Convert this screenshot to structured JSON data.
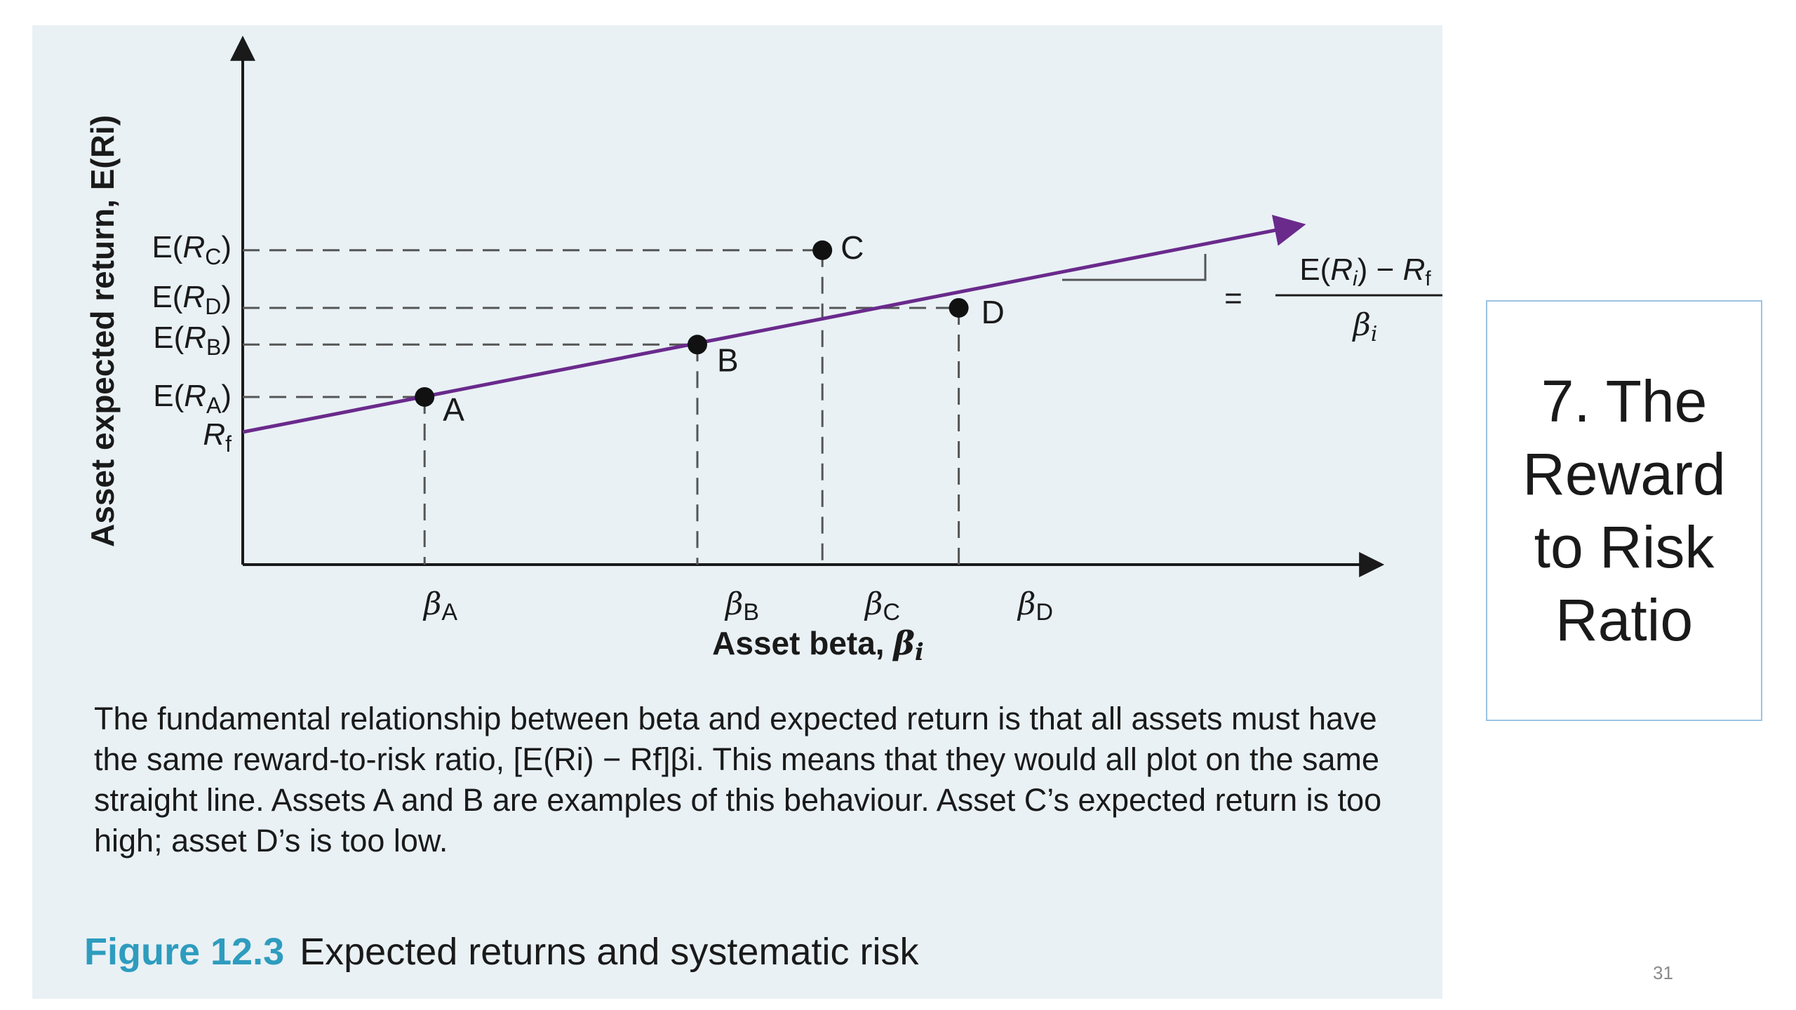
{
  "slide": {
    "title": "7. The Reward to Risk Ratio",
    "page_number": "31"
  },
  "figure": {
    "number": "Figure 12.3",
    "title": "Expected returns and systematic risk",
    "caption": "The fundamental relationship between beta and expected return is that all assets must have the same reward-to-risk ratio, [E(Ri) − Rf]βi. This means that they would all plot on the same straight line. Assets A and B are examples of this behaviour. Asset C’s expected return is too high; asset D’s is too low."
  },
  "chart_data": {
    "type": "line",
    "xlabel": "Asset beta, βi",
    "ylabel": "Asset expected return, E(Ri)",
    "x_tick_labels": [
      "βA",
      "βB",
      "βC",
      "βD"
    ],
    "y_tick_labels": [
      "E(RC)",
      "E(RD)",
      "E(RB)",
      "E(RA)",
      "Rf"
    ],
    "slope_annotation": {
      "numerator": "E(Ri) − Rf",
      "denominator": "βi",
      "equals": "="
    },
    "xlim": [
      0,
      1.0
    ],
    "ylim": [
      0,
      1.0
    ],
    "line": {
      "intercept": 0.253,
      "slope": 0.424,
      "x_end": 0.93,
      "color": "#6a2a8c"
    },
    "points": [
      {
        "name": "A",
        "x": 0.16,
        "y": 0.32
      },
      {
        "name": "B",
        "x": 0.4,
        "y": 0.42
      },
      {
        "name": "C",
        "x": 0.51,
        "y": 0.6
      },
      {
        "name": "D",
        "x": 0.63,
        "y": 0.49
      }
    ]
  }
}
